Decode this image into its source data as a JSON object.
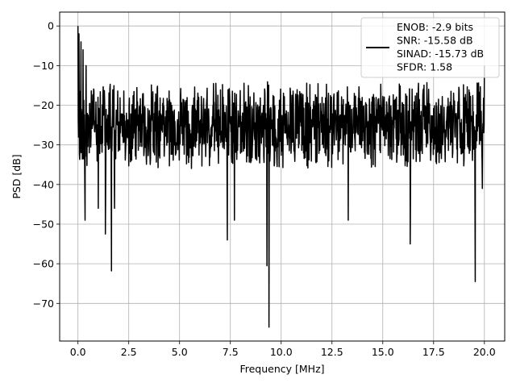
{
  "chart_data": {
    "type": "line",
    "title": "",
    "xlabel": "Frequency [MHz]",
    "ylabel": "PSD [dB]",
    "xlim": [
      -0.9,
      21.0
    ],
    "ylim": [
      -79.5,
      3.5
    ],
    "xticks": [
      0.0,
      2.5,
      5.0,
      7.5,
      10.0,
      12.5,
      15.0,
      17.5,
      20.0
    ],
    "xtick_labels": [
      "0.0",
      "2.5",
      "5.0",
      "7.5",
      "10.0",
      "12.5",
      "15.0",
      "17.5",
      "20.0"
    ],
    "yticks": [
      0,
      -10,
      -20,
      -30,
      -40,
      -50,
      -60,
      -70
    ],
    "ytick_labels": [
      "0",
      "−10",
      "−20",
      "−30",
      "−40",
      "−50",
      "−60",
      "−70"
    ],
    "grid": true,
    "legend_position": "top-right",
    "legend_lines": [
      "ENOB: -2.9 bits",
      "SNR: -15.58 dB",
      "SINAD: -15.73 dB",
      "SFDR: 1.58"
    ],
    "series": [
      {
        "color": "#000000",
        "x_range": [
          0.0,
          20.0
        ],
        "baseline_db": -22.0,
        "fluctuation_db": [
          -36,
          -14
        ],
        "peaks": [
          {
            "x": 0.0,
            "y": 0.0
          },
          {
            "x": 0.05,
            "y": -2.0
          },
          {
            "x": 0.15,
            "y": -4.0
          },
          {
            "x": 0.25,
            "y": -6.0
          },
          {
            "x": 0.4,
            "y": -10.0
          },
          {
            "x": 20.0,
            "y": -10.0
          }
        ],
        "dips": [
          {
            "x": 0.35,
            "y": -49.0
          },
          {
            "x": 1.0,
            "y": -46.0
          },
          {
            "x": 1.35,
            "y": -52.5
          },
          {
            "x": 1.65,
            "y": -61.8
          },
          {
            "x": 1.8,
            "y": -46.0
          },
          {
            "x": 7.35,
            "y": -54.0
          },
          {
            "x": 7.7,
            "y": -49.0
          },
          {
            "x": 9.3,
            "y": -60.5
          },
          {
            "x": 9.4,
            "y": -76.0
          },
          {
            "x": 13.3,
            "y": -49.0
          },
          {
            "x": 16.35,
            "y": -55.0
          },
          {
            "x": 19.55,
            "y": -64.5
          },
          {
            "x": 19.9,
            "y": -41.0
          }
        ]
      }
    ]
  }
}
